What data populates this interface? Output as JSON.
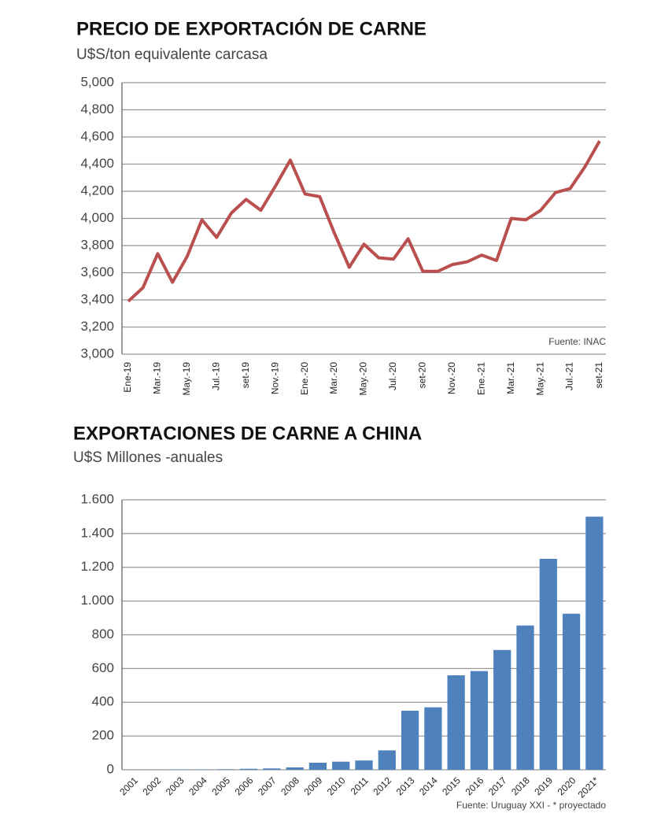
{
  "chart_data": [
    {
      "type": "line",
      "title": "PRECIO DE EXPORTACIÓN DE CARNE",
      "subtitle": "U$S/ton equivalente carcasa",
      "categories": [
        "Ene-19",
        null,
        "Mar.-19",
        null,
        "May.-19",
        null,
        "Jul.-19",
        null,
        "set-19",
        null,
        "Nov.-19",
        null,
        "Ene.-20",
        null,
        "Mar.-20",
        null,
        "May.-20",
        null,
        "Jul.-20",
        null,
        "set-20",
        null,
        "Nov.-20",
        null,
        "Ene.-21",
        null,
        "Mar.-21",
        null,
        "May.-21",
        null,
        "Jul.-21",
        null,
        "set-21"
      ],
      "values": [
        3390,
        3490,
        3740,
        3530,
        3720,
        3990,
        3860,
        4040,
        4140,
        4060,
        4240,
        4430,
        4180,
        4160,
        3890,
        3640,
        3810,
        3710,
        3700,
        3850,
        3610,
        3610,
        3660,
        3680,
        3730,
        3690,
        4000,
        3990,
        4060,
        4190,
        4220,
        4380,
        4570
      ],
      "color": "#b9504f",
      "ylim": [
        3000,
        5000
      ],
      "yticks": [
        {
          "value": 3000,
          "label": "3,000"
        },
        {
          "value": 3200,
          "label": "3,200"
        },
        {
          "value": 3400,
          "label": "3,400"
        },
        {
          "value": 3600,
          "label": "3,600"
        },
        {
          "value": 3800,
          "label": "3,800"
        },
        {
          "value": 4000,
          "label": "4,000"
        },
        {
          "value": 4200,
          "label": "4,200"
        },
        {
          "value": 4400,
          "label": "4,400"
        },
        {
          "value": 4600,
          "label": "4,600"
        },
        {
          "value": 4800,
          "label": "4,800"
        },
        {
          "value": 5000,
          "label": "5,000"
        }
      ],
      "grid": true,
      "annotation": "Fuente: INAC"
    },
    {
      "type": "bar",
      "title": "EXPORTACIONES DE CARNE A CHINA",
      "subtitle": "U$S Millones -anuales",
      "categories": [
        "2001",
        "2002",
        "2003",
        "2004",
        "2005",
        "2006",
        "2007",
        "2008",
        "2009",
        "2010",
        "2011",
        "2012",
        "2013",
        "2014",
        "2015",
        "2016",
        "2017",
        "2018",
        "2019",
        "2020",
        "2021*"
      ],
      "values": [
        1,
        1,
        2,
        2,
        3,
        6,
        8,
        14,
        42,
        48,
        55,
        115,
        350,
        370,
        560,
        585,
        710,
        855,
        1250,
        925,
        1500
      ],
      "color": "#4f81bd",
      "ylim": [
        0,
        1600
      ],
      "yticks": [
        0,
        200,
        400,
        600,
        800,
        {
          "value": 1000,
          "label": "1.000"
        },
        {
          "value": 1200,
          "label": "1.200"
        },
        {
          "value": 1400,
          "label": "1.400"
        },
        {
          "value": 1600,
          "label": "1.600"
        }
      ],
      "grid": true,
      "annotation": "Fuente: Uruguay XXI - * proyectado"
    }
  ]
}
